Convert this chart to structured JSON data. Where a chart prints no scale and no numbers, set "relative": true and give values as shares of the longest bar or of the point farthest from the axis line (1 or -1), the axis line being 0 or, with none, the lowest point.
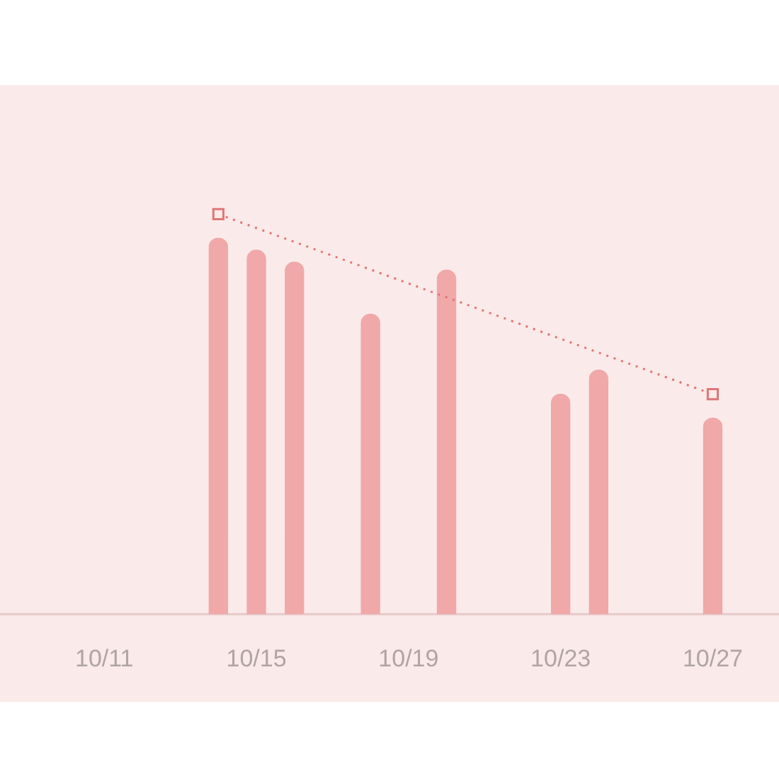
{
  "chart_data": {
    "type": "bar",
    "relative": true,
    "categories": [
      null,
      null,
      "10/11",
      null,
      null,
      null,
      "10/15",
      null,
      null,
      null,
      "10/19",
      null,
      null,
      null,
      "10/23",
      null,
      null,
      null,
      "10/27",
      null
    ],
    "series": [
      {
        "color": "#f0a8a8",
        "values": [
          null,
          null,
          null,
          null,
          null,
          0.94,
          0.91,
          0.88,
          null,
          0.75,
          null,
          0.86,
          null,
          null,
          0.55,
          0.61,
          null,
          null,
          0.49,
          null
        ]
      },
      {
        "type": "line",
        "color": "#e07676",
        "marker": "square",
        "line_style": "dotted",
        "values": [
          null,
          null,
          null,
          null,
          null,
          1,
          null,
          null,
          null,
          null,
          null,
          null,
          null,
          null,
          null,
          null,
          null,
          null,
          0.55,
          null
        ]
      }
    ],
    "legend": false
  }
}
